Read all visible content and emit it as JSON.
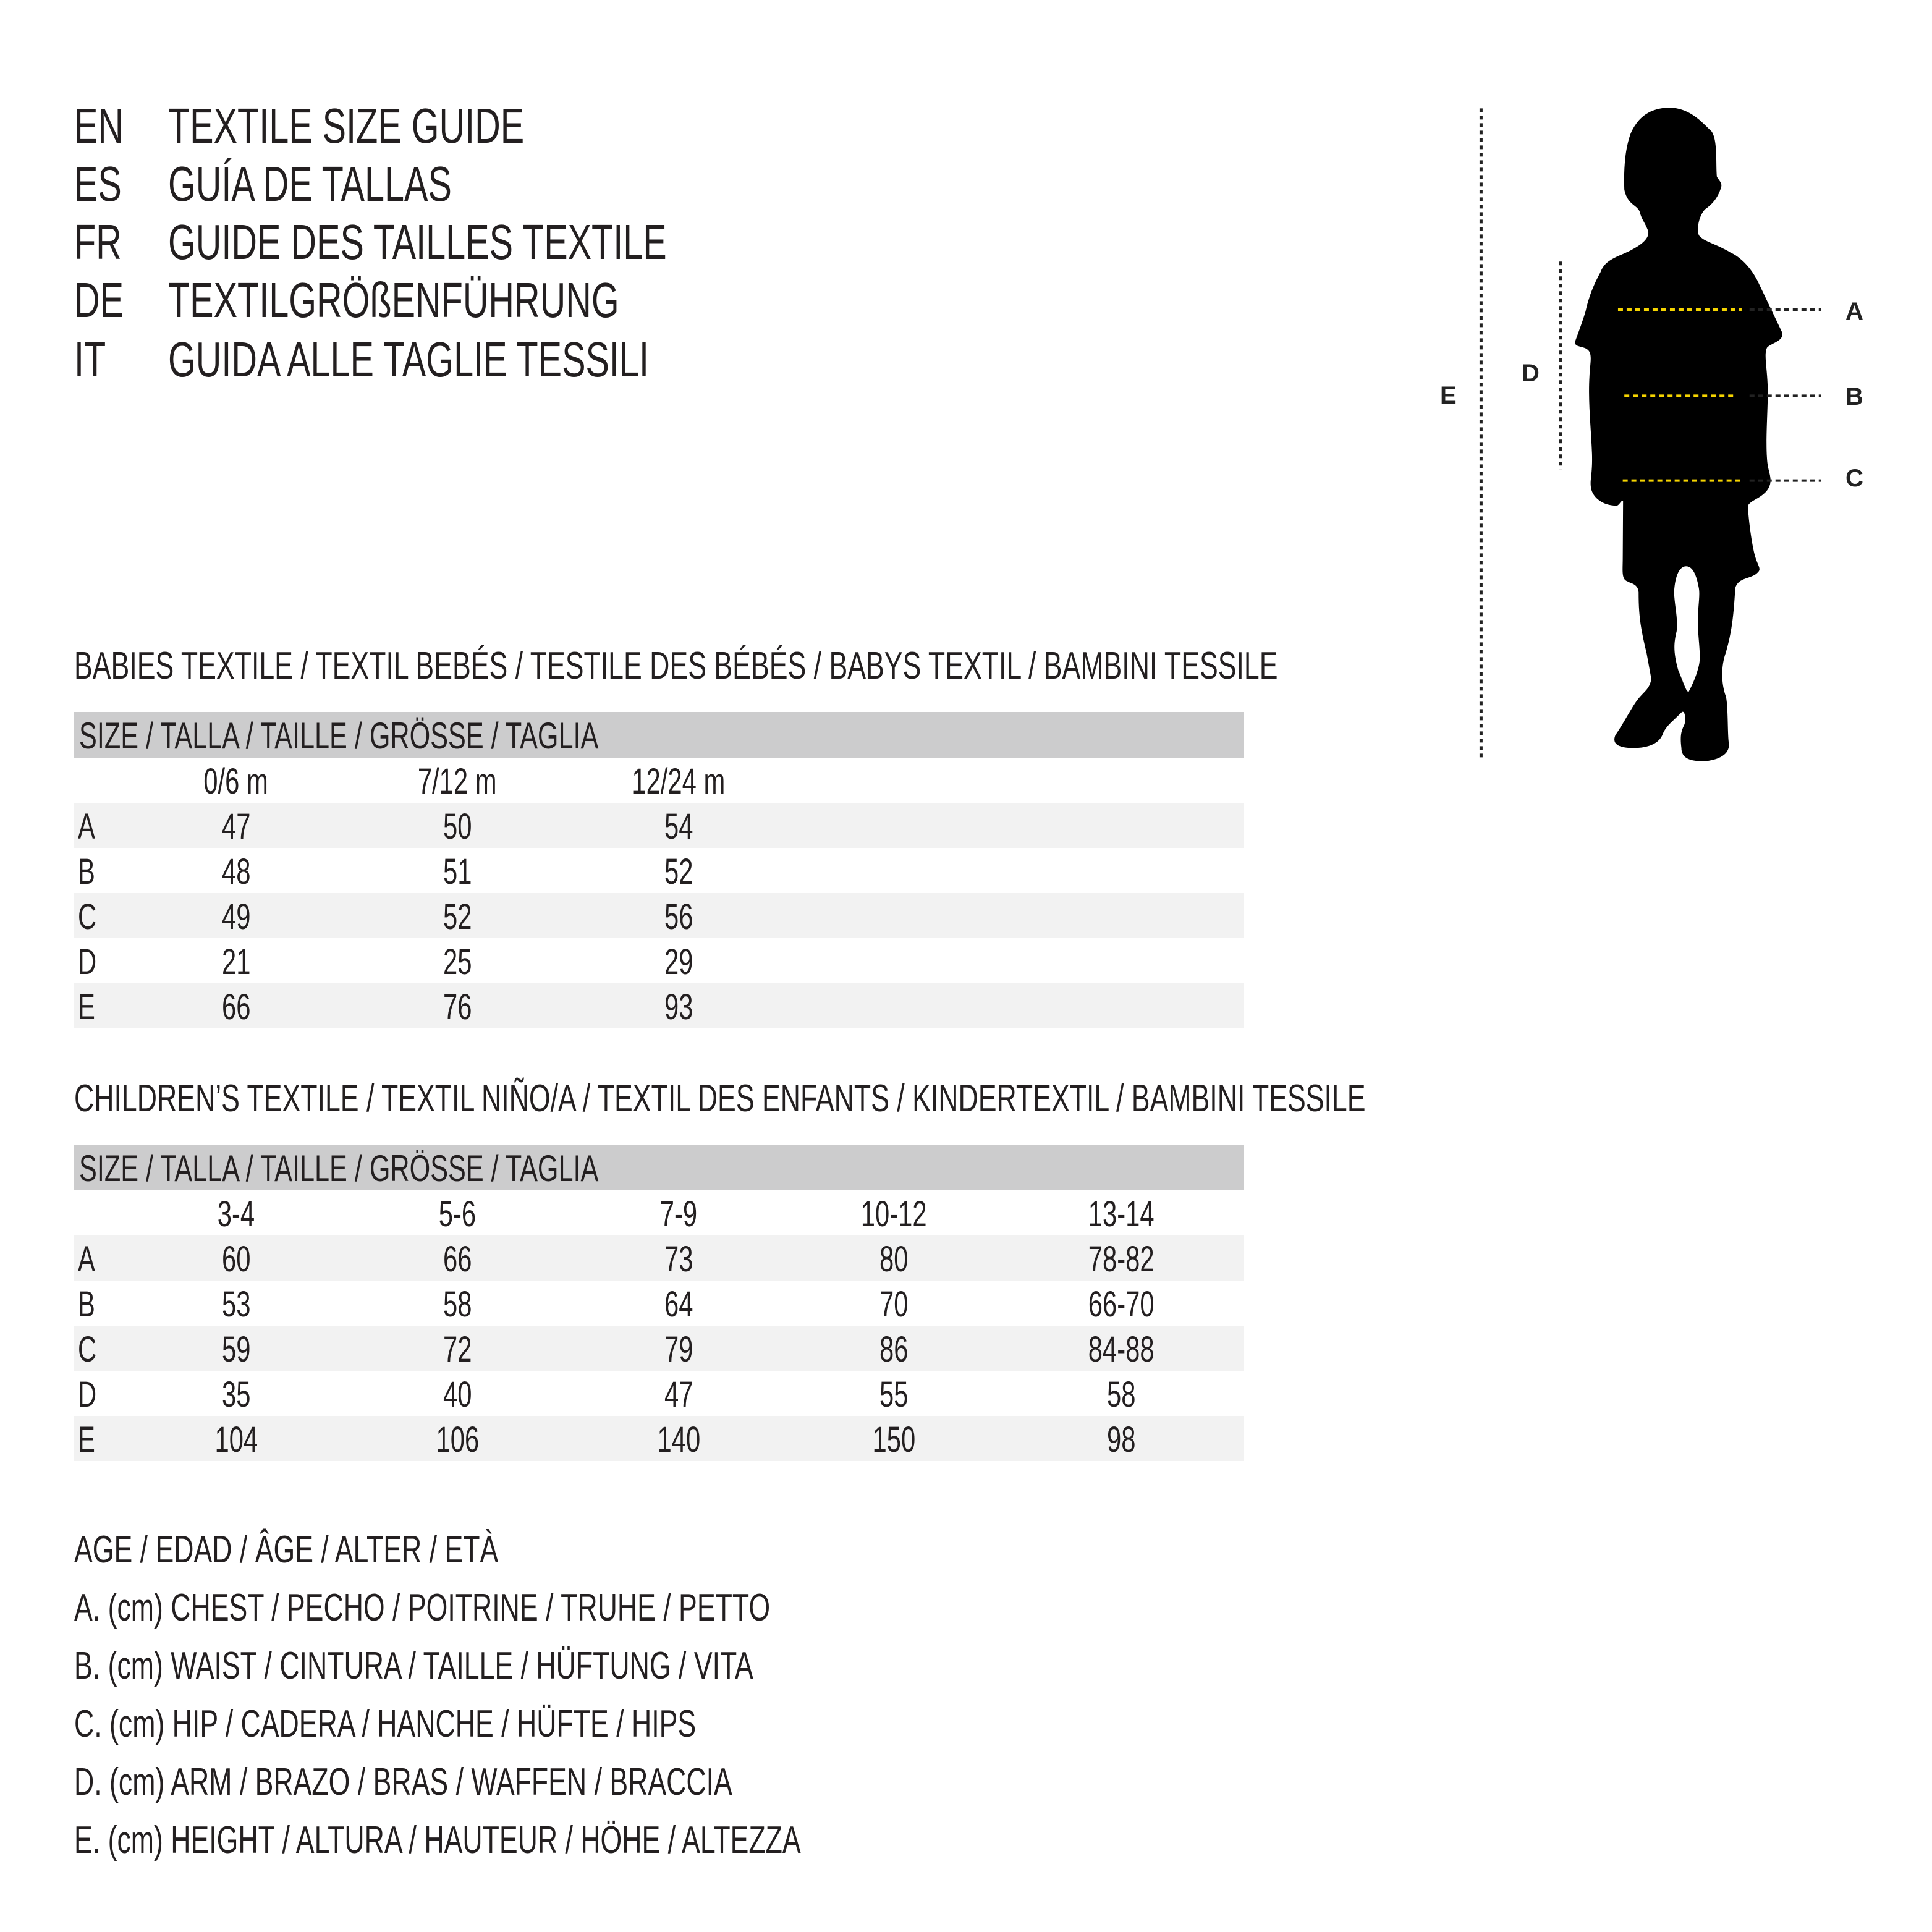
{
  "header": {
    "lines": [
      {
        "code": "EN",
        "text": "TEXTILE SIZE GUIDE"
      },
      {
        "code": "ES",
        "text": "GUÍA DE TALLAS"
      },
      {
        "code": "FR",
        "text": "GUIDE DES TAILLES TEXTILE"
      },
      {
        "code": "DE",
        "text": "TEXTILGRÖßENFÜHRUNG"
      },
      {
        "code": "IT",
        "text": "GUIDA ALLE TAGLIE TESSILI"
      }
    ]
  },
  "figure": {
    "labels": {
      "A": "A",
      "B": "B",
      "C": "C",
      "D": "D",
      "E": "E"
    },
    "measure_line_color": "#f5d400",
    "silhouette_color": "#000000"
  },
  "babies": {
    "title": "BABIES TEXTILE / TEXTIL BEBÉS / TESTILE DES BÉBÉS / BABYS TEXTIL / BAMBINI TESSILE",
    "size_header": "SIZE / TALLA / TAILLE / GRÖSSE / TAGLIA",
    "columns": [
      "0/6 m",
      "7/12 m",
      "12/24 m"
    ],
    "rows": [
      {
        "label": "A",
        "values": [
          "47",
          "50",
          "54"
        ]
      },
      {
        "label": "B",
        "values": [
          "48",
          "51",
          "52"
        ]
      },
      {
        "label": "C",
        "values": [
          "49",
          "52",
          "56"
        ]
      },
      {
        "label": "D",
        "values": [
          "21",
          "25",
          "29"
        ]
      },
      {
        "label": "E",
        "values": [
          "66",
          "76",
          "93"
        ]
      }
    ]
  },
  "children": {
    "title": "CHILDREN’S TEXTILE / TEXTIL NIÑO/A / TEXTIL DES ENFANTS / KINDERTEXTIL / BAMBINI TESSILE",
    "size_header": "SIZE / TALLA / TAILLE / GRÖSSE / TAGLIA",
    "columns": [
      "3-4",
      "5-6",
      "7-9",
      "10-12",
      "13-14"
    ],
    "rows": [
      {
        "label": "A",
        "values": [
          "60",
          "66",
          "73",
          "80",
          "78-82"
        ]
      },
      {
        "label": "B",
        "values": [
          "53",
          "58",
          "64",
          "70",
          "66-70"
        ]
      },
      {
        "label": "C",
        "values": [
          "59",
          "72",
          "79",
          "86",
          "84-88"
        ]
      },
      {
        "label": "D",
        "values": [
          "35",
          "40",
          "47",
          "55",
          "58"
        ]
      },
      {
        "label": "E",
        "values": [
          "104",
          "106",
          "140",
          "150",
          "98"
        ]
      }
    ]
  },
  "legend": [
    "AGE / EDAD / ÂGE / ALTER / ETÀ",
    "A. (cm) CHEST / PECHO / POITRINE / TRUHE / PETTO",
    "B. (cm) WAIST / CINTURA / TAILLE / HÜFTUNG / VITA",
    "C. (cm) HIP / CADERA / HANCHE / HÜFTE / HIPS",
    "D. (cm) ARM / BRAZO / BRAS / WAFFEN / BRACCIA",
    "E. (cm) HEIGHT / ALTURA / HAUTEUR / HÖHE / ALTEZZA"
  ]
}
